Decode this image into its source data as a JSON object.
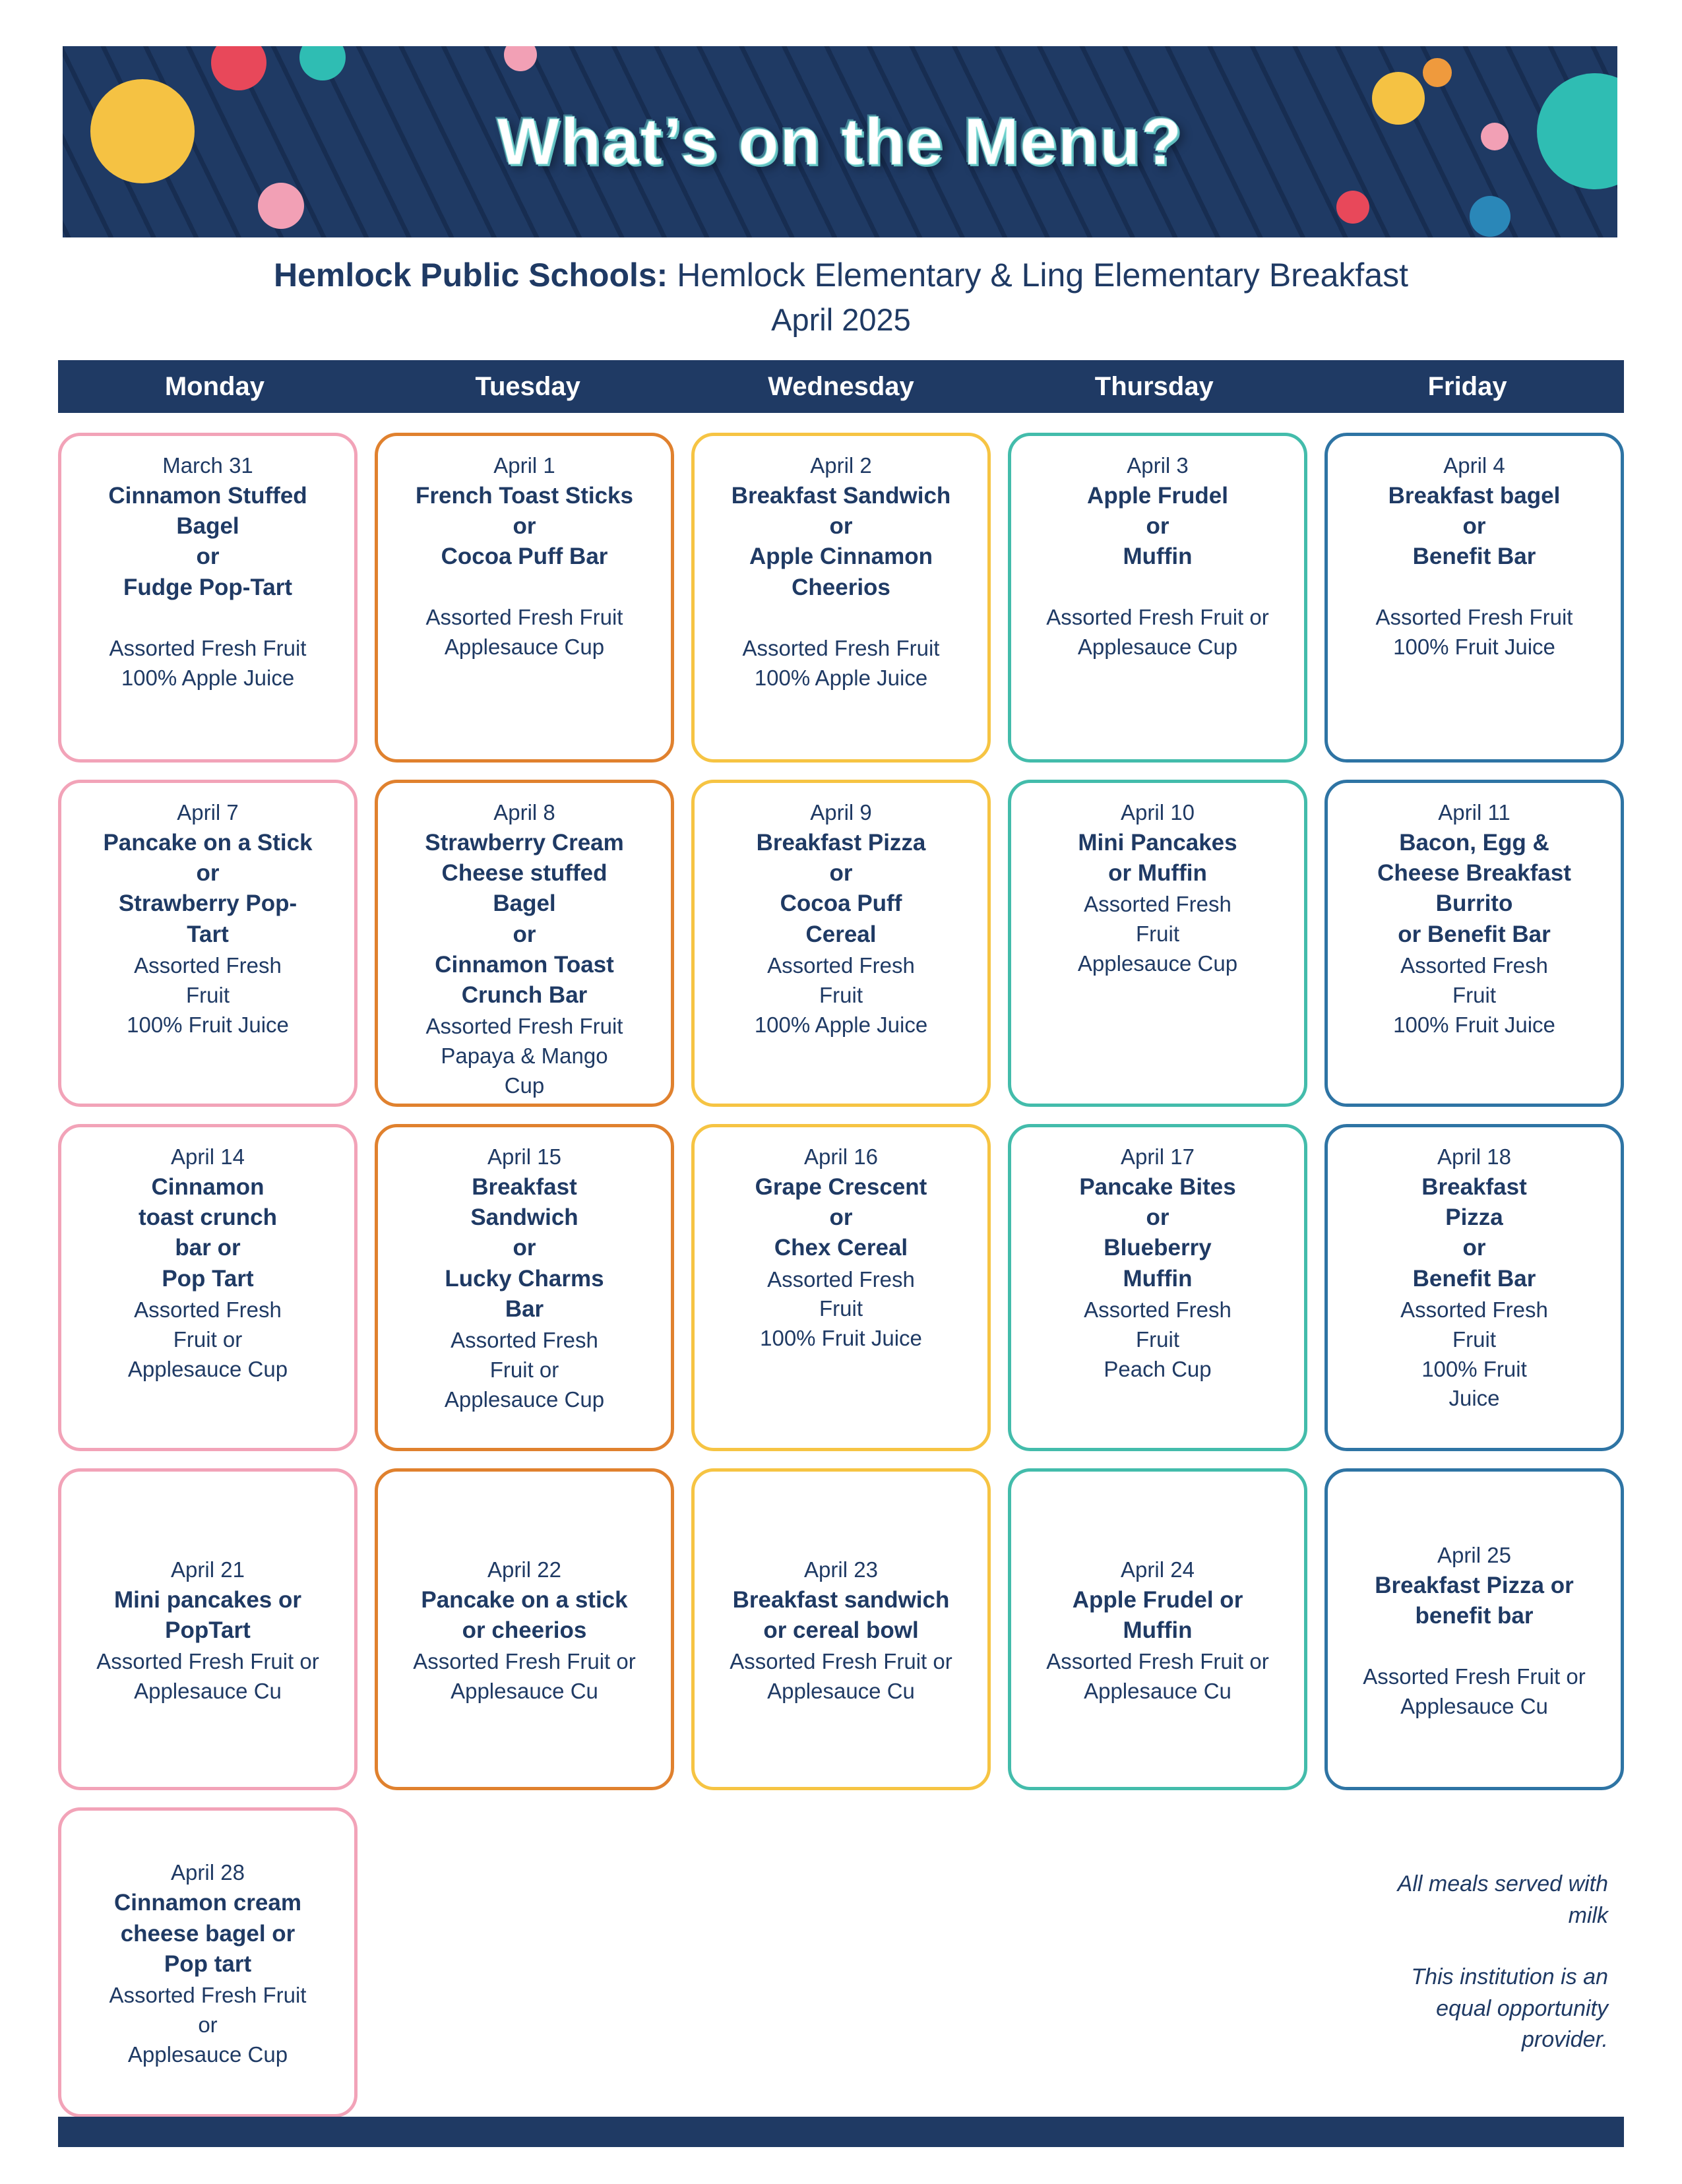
{
  "banner": {
    "title": "What’s on the Menu?"
  },
  "header": {
    "school_bold": "Hemlock Public Schools:",
    "school_rest": " Hemlock Elementary & Ling Elementary Breakfast",
    "month": "April 2025"
  },
  "weekdays": [
    "Monday",
    "Tuesday",
    "Wednesday",
    "Thursday",
    "Friday"
  ],
  "colors": {
    "navy": "#1f3a64",
    "pink": "#f2a3b8",
    "orange": "#e0812e",
    "yellow": "#f6c443",
    "teal": "#43bcab",
    "blue": "#2e74a4",
    "dotYellow": "#f5c243",
    "dotRed": "#e8485a",
    "dotTeal": "#2fbdb3",
    "dotPink": "#f2a0b5",
    "dotBlue": "#2a87b8",
    "dotOrange": "#ef9a3d"
  },
  "rows": [
    [
      {
        "date": "March 31",
        "entree": "Cinnamon Stuffed\nBagel\nor\nFudge Pop-Tart",
        "sides": "\nAssorted Fresh Fruit\n100% Apple Juice"
      },
      {
        "date": "April 1",
        "entree": "French Toast Sticks\nor\nCocoa Puff Bar",
        "sides": "\nAssorted Fresh Fruit\nApplesauce Cup"
      },
      {
        "date": "April 2",
        "entree": "Breakfast Sandwich\nor\nApple Cinnamon\nCheerios",
        "sides": "\nAssorted Fresh Fruit\n100% Apple Juice"
      },
      {
        "date": "April 3",
        "entree": "Apple Frudel\nor\nMuffin",
        "sides": "\nAssorted Fresh Fruit or\nApplesauce Cup"
      },
      {
        "date": "April 4",
        "entree": "Breakfast bagel\nor\nBenefit Bar",
        "sides": "\nAssorted Fresh Fruit\n100% Fruit Juice"
      }
    ],
    [
      {
        "date": "April 7",
        "entree": "Pancake on a Stick\nor\nStrawberry Pop-\nTart",
        "sides": "Assorted Fresh\nFruit\n100% Fruit Juice"
      },
      {
        "date": "April 8",
        "entree": "Strawberry Cream\nCheese stuffed\nBagel\nor\nCinnamon Toast\nCrunch Bar",
        "sides": "Assorted Fresh Fruit\nPapaya & Mango\nCup"
      },
      {
        "date": "April 9",
        "entree": "Breakfast Pizza\nor\nCocoa Puff\nCereal",
        "sides": "Assorted Fresh\nFruit\n100% Apple Juice"
      },
      {
        "date": "April 10",
        "entree": "Mini Pancakes\nor Muffin",
        "sides": "Assorted Fresh\nFruit\nApplesauce Cup"
      },
      {
        "date": "April 11",
        "entree": "Bacon, Egg &\nCheese Breakfast\nBurrito\nor Benefit Bar",
        "sides": "Assorted Fresh\nFruit\n100% Fruit Juice"
      }
    ],
    [
      {
        "date": "April 14",
        "entree": "Cinnamon\ntoast crunch\nbar or\nPop Tart",
        "sides": "Assorted Fresh\nFruit or\nApplesauce Cup"
      },
      {
        "date": "April 15",
        "entree": "Breakfast\nSandwich\nor\nLucky Charms\nBar",
        "sides": "Assorted Fresh\nFruit or\nApplesauce Cup"
      },
      {
        "date": "April 16",
        "entree": "Grape Crescent\nor\nChex Cereal",
        "sides": "Assorted Fresh\nFruit\n100% Fruit Juice"
      },
      {
        "date": "April 17",
        "entree": "Pancake Bites\nor\nBlueberry\nMuffin",
        "sides": "Assorted Fresh\nFruit\nPeach Cup"
      },
      {
        "date": "April 18",
        "entree": "Breakfast\nPizza\nor\nBenefit Bar",
        "sides": "Assorted Fresh\nFruit\n100% Fruit\nJuice"
      }
    ],
    [
      {
        "date": "April 21",
        "entree": "Mini pancakes or\nPopTart",
        "sides": "Assorted Fresh Fruit or\nApplesauce Cu"
      },
      {
        "date": "April 22",
        "entree": "Pancake on a stick\nor cheerios",
        "sides": "Assorted Fresh Fruit or\nApplesauce Cu"
      },
      {
        "date": "April 23",
        "entree": "Breakfast sandwich\nor cereal bowl",
        "sides": "Assorted Fresh Fruit or\nApplesauce Cu"
      },
      {
        "date": "April 24",
        "entree": "Apple Frudel or\nMuffin",
        "sides": "Assorted Fresh Fruit or\nApplesauce Cu"
      },
      {
        "date": "April 25",
        "entree": "Breakfast Pizza or\nbenefit bar",
        "sides": "\nAssorted Fresh Fruit or\nApplesauce Cu"
      }
    ],
    [
      {
        "date": "April 28",
        "entree": "Cinnamon cream\ncheese bagel or\nPop tart",
        "sides": "Assorted Fresh Fruit\nor\nApplesauce Cup"
      }
    ]
  ],
  "notes": {
    "milk": "All meals served with\nmilk",
    "institution": "This institution is an\nequal opportunity\nprovider."
  }
}
